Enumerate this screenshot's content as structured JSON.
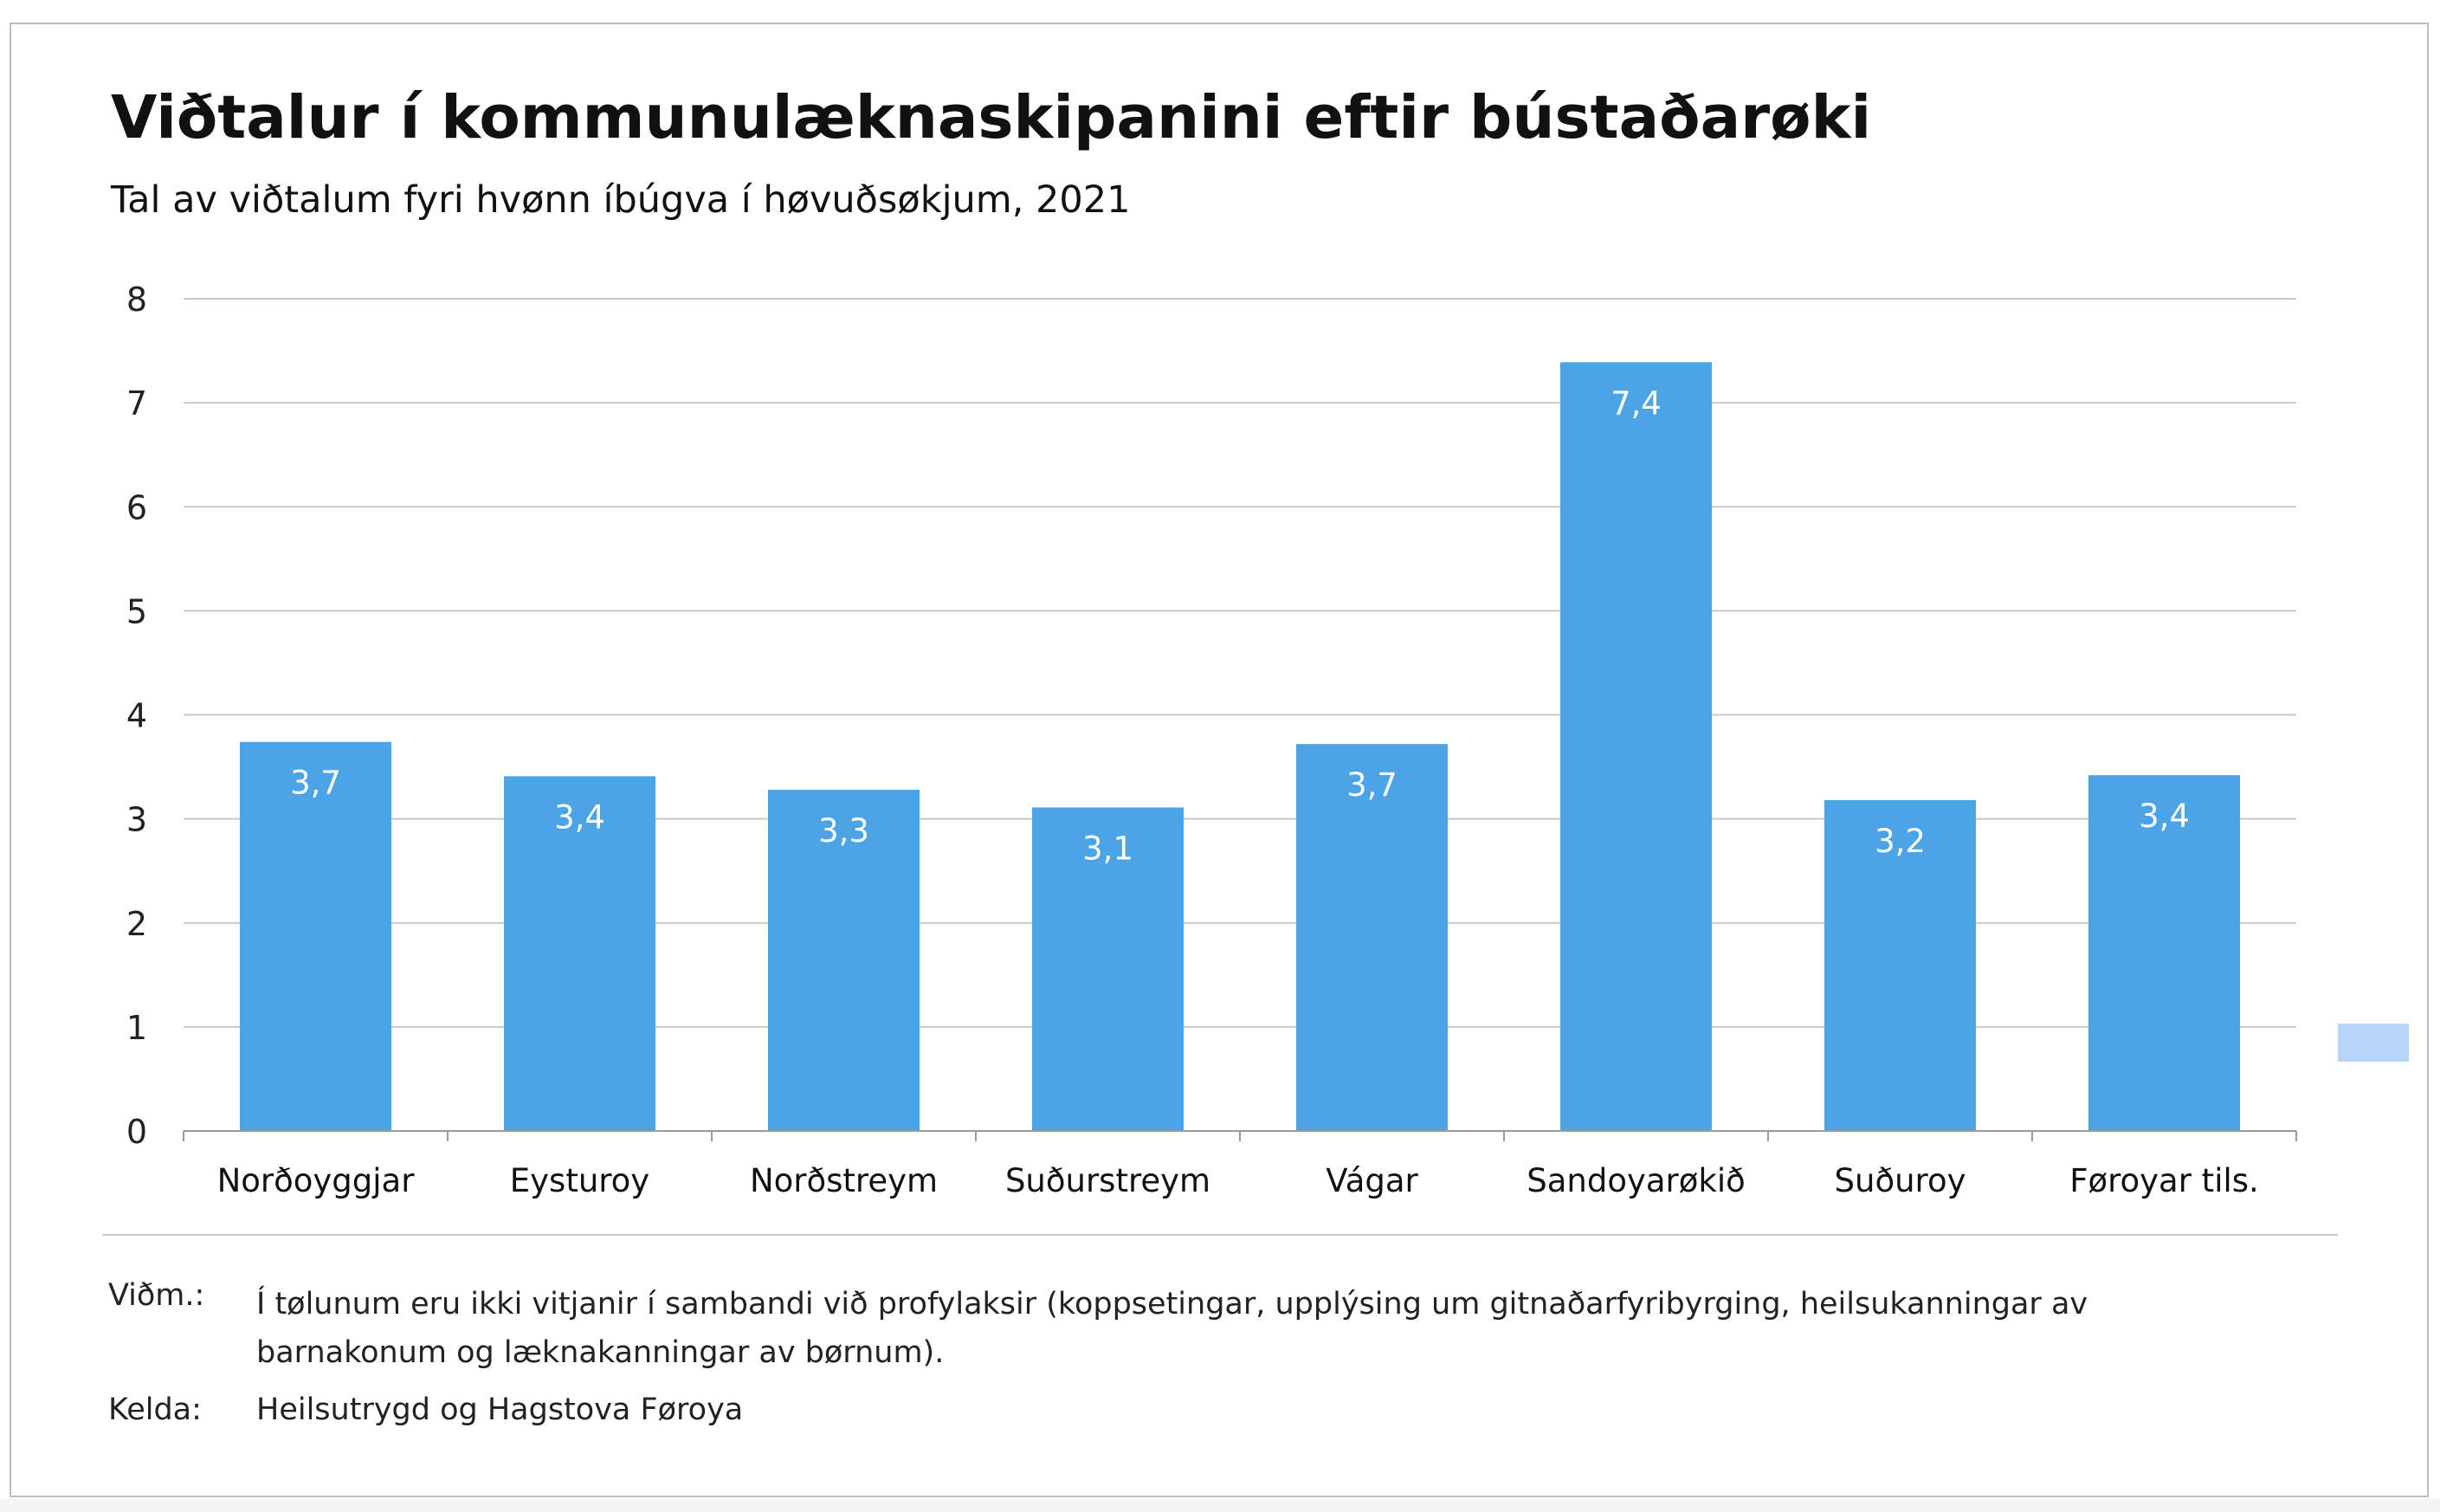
{
  "title": "Viðtalur í kommunulæknaskipanini eftir bústaðarøki",
  "subtitle": "Tal av viðtalum fyri hvønn íbúgva í høvuðsøkjum, 2021",
  "note": {
    "label": "Viðm.:",
    "text": "Í tølunum eru ikki vitjanir í sambandi við profylaksir (koppsetingar, upplýsing um gitnaðarfyribyrging, heilsukanningar av barnakonum og læknakanningar av børnum)."
  },
  "source": {
    "label": "Kelda:",
    "text": "Heilsutrygd og Hagstova Føroya"
  },
  "colors": {
    "bar": "#4aa4e6",
    "grid": "#c9c9c9",
    "axis": "#9a9a9a",
    "legend_swatch": "#b7d5f8"
  },
  "chart_data": {
    "type": "bar",
    "title": "Viðtalur í kommunulæknaskipanini eftir bústaðarøki",
    "subtitle": "Tal av viðtalum fyri hvønn íbúgva í høvuðsøkjum, 2021",
    "xlabel": "",
    "ylabel": "",
    "ylim": [
      0,
      8
    ],
    "yticks": [
      0,
      1,
      2,
      3,
      4,
      5,
      6,
      7,
      8
    ],
    "grid": true,
    "categories": [
      "Norðoyggjar",
      "Eysturoy",
      "Norðstreym",
      "Suðurstreym",
      "Vágar",
      "Sandoyarøkið",
      "Suðuroy",
      "Føroyar tils."
    ],
    "values": [
      3.74,
      3.41,
      3.28,
      3.11,
      3.72,
      7.39,
      3.18,
      3.42
    ],
    "labels": [
      "3,7",
      "3,4",
      "3,3",
      "3,1",
      "3,7",
      "7,4",
      "3,2",
      "3,4"
    ]
  }
}
